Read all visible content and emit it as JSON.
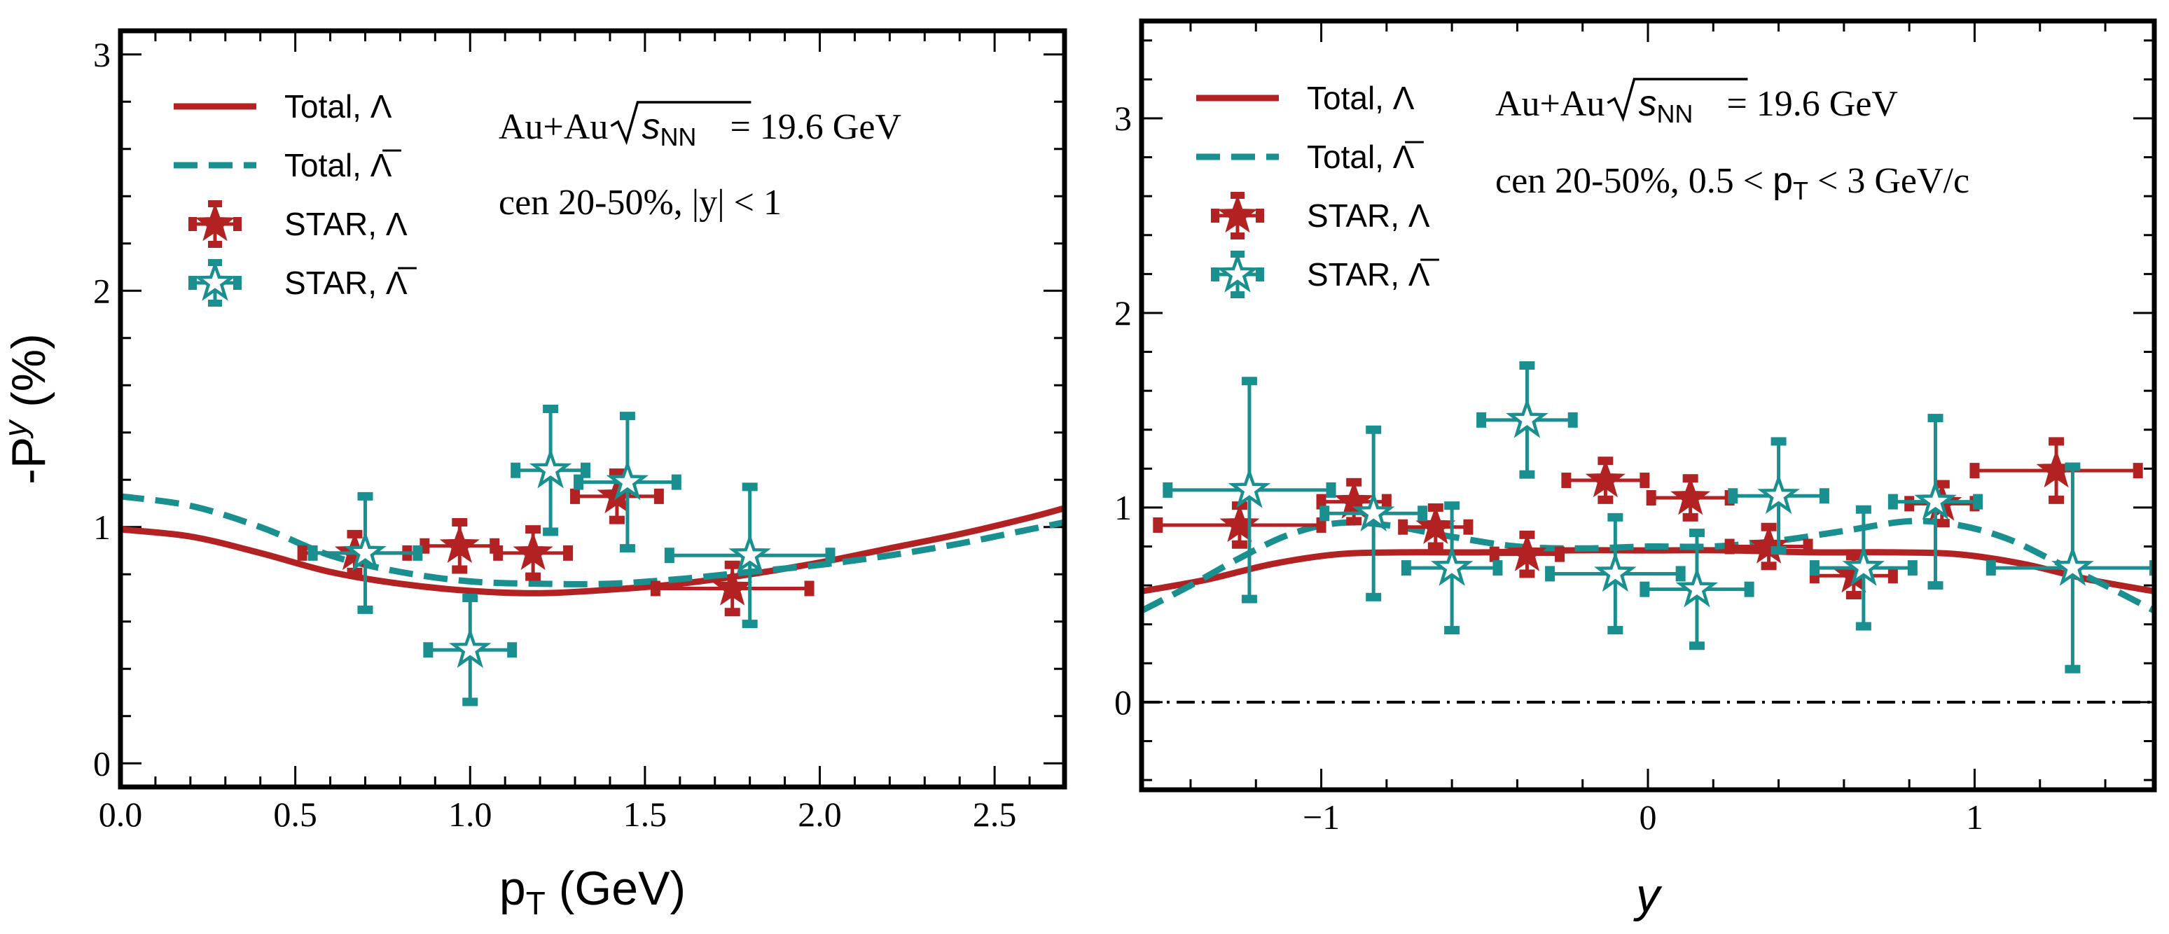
{
  "colors": {
    "lambda": "#b22222",
    "antilambda": "#1a8f8f",
    "axis": "#000000"
  },
  "chart_data": [
    {
      "type": "line",
      "panel": "left",
      "xlabel_main": "p",
      "xlabel_sub": "T",
      "xlabel_unit": "(GeV)",
      "ylabel_main": "-P",
      "ylabel_sup": "y",
      "ylabel_unit": "(%)",
      "xlim": [
        0,
        2.7
      ],
      "ylim": [
        -0.1,
        3.1
      ],
      "xticks": [
        0,
        0.5,
        1.0,
        1.5,
        2.0,
        2.5
      ],
      "xtick_labels": [
        "0.0",
        "0.5",
        "1.0",
        "1.5",
        "2.0",
        "2.5"
      ],
      "yticks": [
        0,
        1,
        2,
        3
      ],
      "ytick_labels": [
        "0",
        "1",
        "2",
        "3"
      ],
      "annotation_line1_prefix": "Au+Au",
      "annotation_sqrt_var": "s",
      "annotation_sqrt_sub": "NN",
      "annotation_line1_suffix": "= 19.6 GeV",
      "annotation_line2": "cen 20-50%, |y| < 1",
      "legend": [
        {
          "label": "Total, Λ",
          "kind": "solid",
          "color_key": "lambda"
        },
        {
          "label": "Total, Λ̅",
          "kind": "dashed",
          "color_key": "antilambda"
        },
        {
          "label": "STAR, Λ",
          "kind": "filled-star",
          "color_key": "lambda"
        },
        {
          "label": "STAR, Λ̅",
          "kind": "open-star",
          "color_key": "antilambda"
        }
      ],
      "series": [
        {
          "name": "Total, Λ",
          "style": "solid",
          "x": [
            0,
            0.2,
            0.4,
            0.6,
            0.8,
            1.0,
            1.2,
            1.4,
            1.6,
            1.8,
            2.0,
            2.2,
            2.4,
            2.6,
            2.7
          ],
          "y": [
            0.99,
            0.96,
            0.89,
            0.81,
            0.76,
            0.73,
            0.72,
            0.735,
            0.76,
            0.8,
            0.85,
            0.91,
            0.97,
            1.04,
            1.08
          ]
        },
        {
          "name": "Total, Λ̅",
          "style": "dashed",
          "x": [
            0,
            0.2,
            0.4,
            0.6,
            0.8,
            1.0,
            1.2,
            1.4,
            1.6,
            1.8,
            2.0,
            2.2,
            2.4,
            2.6,
            2.7
          ],
          "y": [
            1.13,
            1.09,
            1.0,
            0.88,
            0.81,
            0.77,
            0.76,
            0.76,
            0.78,
            0.81,
            0.84,
            0.88,
            0.93,
            0.99,
            1.02
          ]
        },
        {
          "name": "STAR, Λ",
          "style": "filled-star",
          "points": [
            {
              "x": 0.67,
              "y": 0.89,
              "xerr": [
                0.15,
                0.15
              ],
              "yerr": 0.08
            },
            {
              "x": 0.97,
              "y": 0.92,
              "xerr": [
                0.1,
                0.1
              ],
              "yerr": 0.1
            },
            {
              "x": 1.18,
              "y": 0.89,
              "xerr": [
                0.1,
                0.1
              ],
              "yerr": 0.1
            },
            {
              "x": 1.42,
              "y": 1.13,
              "xerr": [
                0.12,
                0.12
              ],
              "yerr": 0.1
            },
            {
              "x": 1.75,
              "y": 0.74,
              "xerr": [
                0.22,
                0.22
              ],
              "yerr": 0.1
            }
          ]
        },
        {
          "name": "STAR, Λ̅",
          "style": "open-star",
          "points": [
            {
              "x": 0.7,
              "y": 0.89,
              "xerr": [
                0.15,
                0.15
              ],
              "yerr": 0.24
            },
            {
              "x": 1.0,
              "y": 0.48,
              "xerr": [
                0.12,
                0.12
              ],
              "yerr": 0.22
            },
            {
              "x": 1.23,
              "y": 1.24,
              "xerr": [
                0.1,
                0.1
              ],
              "yerr": 0.26
            },
            {
              "x": 1.45,
              "y": 1.19,
              "xerr": [
                0.14,
                0.14
              ],
              "yerr": 0.28
            },
            {
              "x": 1.8,
              "y": 0.88,
              "xerr": [
                0.23,
                0.23
              ],
              "yerr": 0.29
            }
          ]
        }
      ]
    },
    {
      "type": "line",
      "panel": "right",
      "xlabel_main": "y",
      "xlim": [
        -1.55,
        1.55
      ],
      "ylim": [
        -0.45,
        3.5
      ],
      "xticks": [
        -1,
        0,
        1
      ],
      "xtick_labels": [
        "−1",
        "0",
        "1"
      ],
      "yticks": [
        0,
        1,
        2,
        3
      ],
      "ytick_labels": [
        "0",
        "1",
        "2",
        "3"
      ],
      "zero_line": true,
      "annotation_line1_prefix": "Au+Au",
      "annotation_sqrt_var": "s",
      "annotation_sqrt_sub": "NN",
      "annotation_line1_suffix": "= 19.6 GeV",
      "annotation_line2_prefix": "cen 20-50%,  0.5 < ",
      "annotation_line2_var": "p",
      "annotation_line2_sub": "T",
      "annotation_line2_suffix": " < 3 GeV/c",
      "legend": [
        {
          "label": "Total, Λ",
          "kind": "solid",
          "color_key": "lambda"
        },
        {
          "label": "Total, Λ̅",
          "kind": "dashed",
          "color_key": "antilambda"
        },
        {
          "label": "STAR, Λ",
          "kind": "filled-star",
          "color_key": "lambda"
        },
        {
          "label": "STAR, Λ̅",
          "kind": "open-star",
          "color_key": "antilambda"
        }
      ],
      "series": [
        {
          "name": "Total, Λ",
          "style": "solid",
          "x": [
            -1.55,
            -1.35,
            -1.15,
            -0.95,
            -0.75,
            -0.5,
            -0.25,
            0,
            0.25,
            0.5,
            0.75,
            0.95,
            1.15,
            1.35,
            1.55
          ],
          "y": [
            0.57,
            0.63,
            0.71,
            0.76,
            0.77,
            0.77,
            0.78,
            0.78,
            0.78,
            0.77,
            0.77,
            0.76,
            0.71,
            0.63,
            0.57
          ]
        },
        {
          "name": "Total, Λ̅",
          "style": "dashed",
          "x": [
            -1.55,
            -1.4,
            -1.25,
            -1.1,
            -0.95,
            -0.8,
            -0.6,
            -0.4,
            -0.2,
            0,
            0.2,
            0.4,
            0.6,
            0.8,
            0.95,
            1.1,
            1.25,
            1.4,
            1.55
          ],
          "y": [
            0.47,
            0.6,
            0.74,
            0.86,
            0.92,
            0.91,
            0.85,
            0.8,
            0.79,
            0.8,
            0.8,
            0.83,
            0.88,
            0.93,
            0.91,
            0.84,
            0.72,
            0.6,
            0.47
          ]
        },
        {
          "name": "STAR, Λ",
          "style": "filled-star",
          "points": [
            {
              "x": -1.25,
              "y": 0.91,
              "xerr": [
                0.25,
                0.25
              ],
              "yerr": 0.1
            },
            {
              "x": -0.9,
              "y": 1.03,
              "xerr": [
                0.1,
                0.1
              ],
              "yerr": 0.1
            },
            {
              "x": -0.65,
              "y": 0.9,
              "xerr": [
                0.1,
                0.1
              ],
              "yerr": 0.1
            },
            {
              "x": -0.37,
              "y": 0.76,
              "xerr": [
                0.1,
                0.1
              ],
              "yerr": 0.1
            },
            {
              "x": -0.13,
              "y": 1.14,
              "xerr": [
                0.12,
                0.12
              ],
              "yerr": 0.1
            },
            {
              "x": 0.13,
              "y": 1.05,
              "xerr": [
                0.12,
                0.12
              ],
              "yerr": 0.1
            },
            {
              "x": 0.37,
              "y": 0.8,
              "xerr": [
                0.12,
                0.12
              ],
              "yerr": 0.1
            },
            {
              "x": 0.63,
              "y": 0.65,
              "xerr": [
                0.12,
                0.12
              ],
              "yerr": 0.1
            },
            {
              "x": 0.9,
              "y": 1.02,
              "xerr": [
                0.1,
                0.1
              ],
              "yerr": 0.1
            },
            {
              "x": 1.25,
              "y": 1.19,
              "xerr": [
                0.25,
                0.25
              ],
              "yerr": 0.15
            }
          ]
        },
        {
          "name": "STAR, Λ̅",
          "style": "open-star",
          "points": [
            {
              "x": -1.22,
              "y": 1.09,
              "xerr": [
                0.25,
                0.25
              ],
              "yerr": 0.56
            },
            {
              "x": -0.84,
              "y": 0.97,
              "xerr": [
                0.15,
                0.15
              ],
              "yerr": 0.43
            },
            {
              "x": -0.6,
              "y": 0.69,
              "xerr": [
                0.14,
                0.14
              ],
              "yerr": 0.32
            },
            {
              "x": -0.37,
              "y": 1.45,
              "xerr": [
                0.14,
                0.14
              ],
              "yerr": 0.28
            },
            {
              "x": -0.1,
              "y": 0.66,
              "xerr": [
                0.2,
                0.2
              ],
              "yerr": 0.29
            },
            {
              "x": 0.15,
              "y": 0.58,
              "xerr": [
                0.16,
                0.16
              ],
              "yerr": 0.29
            },
            {
              "x": 0.4,
              "y": 1.06,
              "xerr": [
                0.14,
                0.14
              ],
              "yerr": 0.28
            },
            {
              "x": 0.66,
              "y": 0.69,
              "xerr": [
                0.15,
                0.15
              ],
              "yerr": 0.3
            },
            {
              "x": 0.88,
              "y": 1.03,
              "xerr": [
                0.13,
                0.13
              ],
              "yerr": 0.43
            },
            {
              "x": 1.3,
              "y": 0.69,
              "xerr": [
                0.25,
                0.25
              ],
              "yerr": 0.52
            }
          ]
        }
      ]
    }
  ]
}
